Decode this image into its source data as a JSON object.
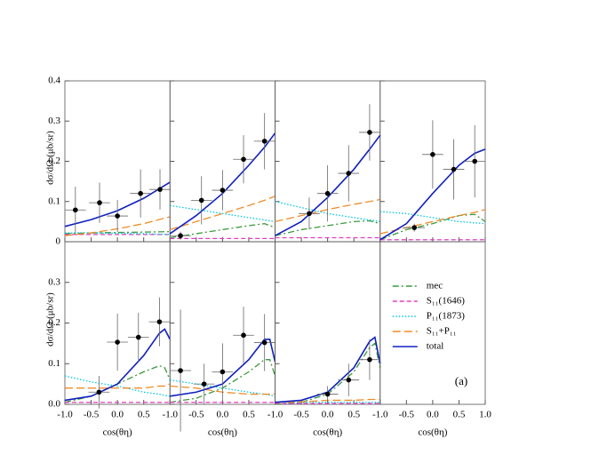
{
  "chart_data": [
    {
      "type": "line",
      "ylabel": "dσ/dΩ (μb/sr)",
      "ylim": [
        0,
        0.4
      ],
      "yticks": [
        0,
        0.1,
        0.2,
        0.3,
        0.4
      ],
      "xlim": [
        -1,
        1
      ],
      "x": [
        -1,
        -0.5,
        0,
        0.5,
        1
      ],
      "series": [
        {
          "values": [
            0.02,
            0.022,
            0.023,
            0.024,
            0.025
          ]
        },
        {
          "values": [
            0.018,
            0.018,
            0.018,
            0.018,
            0.018
          ]
        },
        {
          "values": [
            0.022,
            0.022,
            0.021,
            0.02,
            0.018
          ]
        },
        {
          "values": [
            0.015,
            0.022,
            0.032,
            0.045,
            0.062
          ]
        },
        {
          "values": [
            0.038,
            0.055,
            0.077,
            0.108,
            0.148
          ]
        }
      ],
      "points": {
        "x": [
          -0.8,
          -0.34,
          0,
          0.44,
          0.81
        ],
        "y": [
          0.079,
          0.097,
          0.064,
          0.12,
          0.13
        ],
        "xerr": [
          0.2,
          0.2,
          0.2,
          0.2,
          0.2
        ],
        "yerr": [
          0.058,
          0.05,
          0.04,
          0.06,
          0.05
        ]
      }
    },
    {
      "type": "line",
      "ylim": [
        0,
        0.4
      ],
      "xlim": [
        -1,
        1
      ],
      "x": [
        -1,
        -0.5,
        0,
        0.5,
        0.8,
        1
      ],
      "series": [
        {
          "values": [
            0.01,
            0.02,
            0.03,
            0.04,
            0.045,
            0.035
          ]
        },
        {
          "values": [
            0.008,
            0.008,
            0.008,
            0.008,
            0.008,
            0.008
          ]
        },
        {
          "values": [
            0.09,
            0.08,
            0.07,
            0.06,
            0.054,
            0.05
          ]
        },
        {
          "values": [
            0.03,
            0.05,
            0.07,
            0.09,
            0.103,
            0.113
          ]
        },
        {
          "values": [
            0.02,
            0.065,
            0.12,
            0.19,
            0.235,
            0.27
          ]
        }
      ],
      "points": {
        "x": [
          -0.8,
          -0.4,
          0,
          0.4,
          0.8
        ],
        "y": [
          0.015,
          0.103,
          0.128,
          0.205,
          0.25
        ],
        "xerr": [
          0.2,
          0.2,
          0.2,
          0.2,
          0.2
        ],
        "yerr": [
          0.01,
          0.06,
          0.05,
          0.06,
          0.07
        ]
      }
    },
    {
      "type": "line",
      "ylim": [
        0,
        0.4
      ],
      "xlim": [
        -1,
        1
      ],
      "x": [
        -1,
        -0.5,
        0,
        0.5,
        0.8,
        1
      ],
      "series": [
        {
          "values": [
            0.015,
            0.03,
            0.04,
            0.05,
            0.052,
            0.045
          ]
        },
        {
          "values": [
            0.01,
            0.01,
            0.01,
            0.01,
            0.01,
            0.01
          ]
        },
        {
          "values": [
            0.1,
            0.085,
            0.07,
            0.06,
            0.054,
            0.05
          ]
        },
        {
          "values": [
            0.05,
            0.065,
            0.08,
            0.093,
            0.1,
            0.105
          ]
        },
        {
          "values": [
            0.015,
            0.05,
            0.11,
            0.18,
            0.23,
            0.265
          ]
        }
      ],
      "points": {
        "x": [
          -0.35,
          0,
          0.4,
          0.8
        ],
        "y": [
          0.07,
          0.12,
          0.17,
          0.272
        ],
        "xerr": [
          0.2,
          0.2,
          0.2,
          0.2
        ],
        "yerr": [
          0.04,
          0.07,
          0.07,
          0.07
        ]
      }
    },
    {
      "type": "line",
      "ylim": [
        0,
        0.4
      ],
      "xlim": [
        -1,
        1
      ],
      "x": [
        -1,
        -0.5,
        0,
        0.5,
        0.8,
        1
      ],
      "series": [
        {
          "values": [
            0.005,
            0.03,
            0.045,
            0.065,
            0.068,
            0.05
          ]
        },
        {
          "values": [
            0.005,
            0.005,
            0.005,
            0.005,
            0.005,
            0.005
          ]
        },
        {
          "values": [
            0.075,
            0.07,
            0.06,
            0.05,
            0.047,
            0.045
          ]
        },
        {
          "values": [
            0.02,
            0.035,
            0.05,
            0.065,
            0.073,
            0.08
          ]
        },
        {
          "values": [
            0.005,
            0.045,
            0.12,
            0.19,
            0.22,
            0.23
          ]
        }
      ],
      "points": {
        "x": [
          -0.35,
          0,
          0.4,
          0.8
        ],
        "y": [
          0.035,
          0.217,
          0.18,
          0.2
        ],
        "xerr": [
          0.2,
          0.2,
          0.2,
          0.2
        ],
        "yerr": [
          0.01,
          0.085,
          0.075,
          0.09
        ]
      }
    },
    {
      "type": "line",
      "ylabel": "dσ/dΩ (μb/sr)",
      "xlabel": "cos(θη)",
      "ylim": [
        0,
        0.4
      ],
      "yticks": [
        {
          "value": 0,
          "label": "0.0"
        },
        0.1,
        0.2,
        0.3
      ],
      "xlim": [
        -1,
        1
      ],
      "xticks": [
        {
          "value": -1,
          "label": "-1.0"
        },
        -0.5,
        {
          "value": 0,
          "label": "0.0"
        },
        0.5
      ],
      "x": [
        -1,
        -0.5,
        0,
        0.5,
        0.8,
        0.9,
        1
      ],
      "series": [
        {
          "values": [
            0.005,
            0.02,
            0.05,
            0.08,
            0.095,
            0.09,
            0.06
          ]
        },
        {
          "values": [
            0.005,
            0.005,
            0.005,
            0.005,
            0.005,
            0.005,
            0.005
          ]
        },
        {
          "values": [
            0.07,
            0.055,
            0.045,
            0.03,
            0.025,
            0.022,
            0.02
          ]
        },
        {
          "values": [
            0.04,
            0.04,
            0.04,
            0.04,
            0.045,
            0.045,
            0.05
          ]
        },
        {
          "values": [
            0.01,
            0.02,
            0.05,
            0.12,
            0.175,
            0.185,
            0.16
          ]
        }
      ],
      "points": {
        "x": [
          -0.35,
          0,
          0.4,
          0.8
        ],
        "y": [
          0.03,
          0.153,
          0.165,
          0.203
        ],
        "xerr": [
          0.2,
          0.2,
          0.2,
          0.2
        ],
        "yerr": [
          0.04,
          0.07,
          0.06,
          0.06
        ]
      }
    },
    {
      "type": "line",
      "xlabel": "cos(θη)",
      "ylim": [
        0,
        0.4
      ],
      "xlim": [
        -1,
        1
      ],
      "xticks": [
        {
          "value": -1,
          "label": "-1.0"
        },
        -0.5,
        {
          "value": 0,
          "label": "0.0"
        },
        0.5
      ],
      "x": [
        -1,
        -0.5,
        0,
        0.5,
        0.8,
        0.9,
        1
      ],
      "series": [
        {
          "values": [
            0.005,
            0.015,
            0.04,
            0.08,
            0.11,
            0.11,
            0.07
          ]
        },
        {
          "values": [
            0.005,
            0.005,
            0.005,
            0.005,
            0.005,
            0.005,
            0.005
          ]
        },
        {
          "values": [
            0.06,
            0.05,
            0.04,
            0.03,
            0.025,
            0.023,
            0.02
          ]
        },
        {
          "values": [
            0.045,
            0.04,
            0.03,
            0.025,
            0.025,
            0.025,
            0.025
          ]
        },
        {
          "values": [
            0.02,
            0.03,
            0.05,
            0.11,
            0.16,
            0.16,
            0.105
          ]
        }
      ],
      "points": {
        "x": [
          -0.8,
          -0.35,
          0,
          0.4,
          0.8
        ],
        "y": [
          0.083,
          0.05,
          0.08,
          0.17,
          0.152
        ],
        "xerr": [
          0.2,
          0.2,
          0.2,
          0.2,
          0.2
        ],
        "yerr": [
          0.15,
          0.05,
          0.07,
          0.07,
          0.07
        ]
      }
    },
    {
      "type": "line",
      "xlabel": "cos(θη)",
      "ylim": [
        0,
        0.4
      ],
      "xlim": [
        -1,
        1
      ],
      "xticks": [
        {
          "value": -1,
          "label": "-1.0"
        },
        -0.5,
        {
          "value": 0,
          "label": "0.0"
        },
        0.5
      ],
      "x": [
        -1,
        -0.5,
        0,
        0.5,
        0.8,
        0.9,
        1
      ],
      "series": [
        {
          "values": [
            0,
            0.005,
            0.025,
            0.08,
            0.14,
            0.15,
            0.09
          ]
        },
        {
          "values": [
            0.002,
            0.002,
            0.002,
            0.002,
            0.002,
            0.002,
            0.002
          ]
        },
        {
          "values": [
            0.005,
            0.005,
            0.005,
            0.005,
            0.005,
            0.005,
            0.005
          ]
        },
        {
          "values": [
            0.005,
            0.006,
            0.01,
            0.01,
            0.012,
            0.012,
            0.012
          ]
        },
        {
          "values": [
            0.005,
            0.01,
            0.03,
            0.09,
            0.155,
            0.165,
            0.1
          ]
        }
      ],
      "points": {
        "x": [
          0,
          0.4,
          0.8
        ],
        "y": [
          0.025,
          0.06,
          0.11
        ],
        "xerr": [
          0.2,
          0.2,
          0.2
        ],
        "yerr": [
          0.02,
          0.04,
          0.05
        ]
      }
    },
    {
      "type": "legend",
      "xlabel": "cos(θη)",
      "xlim": [
        -1,
        1
      ],
      "xticks": [
        {
          "value": -1,
          "label": "-1.0"
        },
        -0.5,
        {
          "value": 0,
          "label": "0.0"
        },
        0.5,
        {
          "value": 1,
          "label": "1.0"
        }
      ],
      "annotation": "(a)",
      "series": [
        {
          "name": "mec",
          "color": "#3a9a3a",
          "style": "dash-dot"
        },
        {
          "name": "S₁₁(1646)",
          "color": "#e040c0",
          "style": "dash"
        },
        {
          "name": "P₁₁(1873)",
          "color": "#00c8e0",
          "style": "dot"
        },
        {
          "name": "S₁₁+P₁₁",
          "color": "#f08c28",
          "style": "long-dash"
        },
        {
          "name": "total",
          "color": "#1020c0",
          "style": "solid"
        }
      ]
    }
  ]
}
